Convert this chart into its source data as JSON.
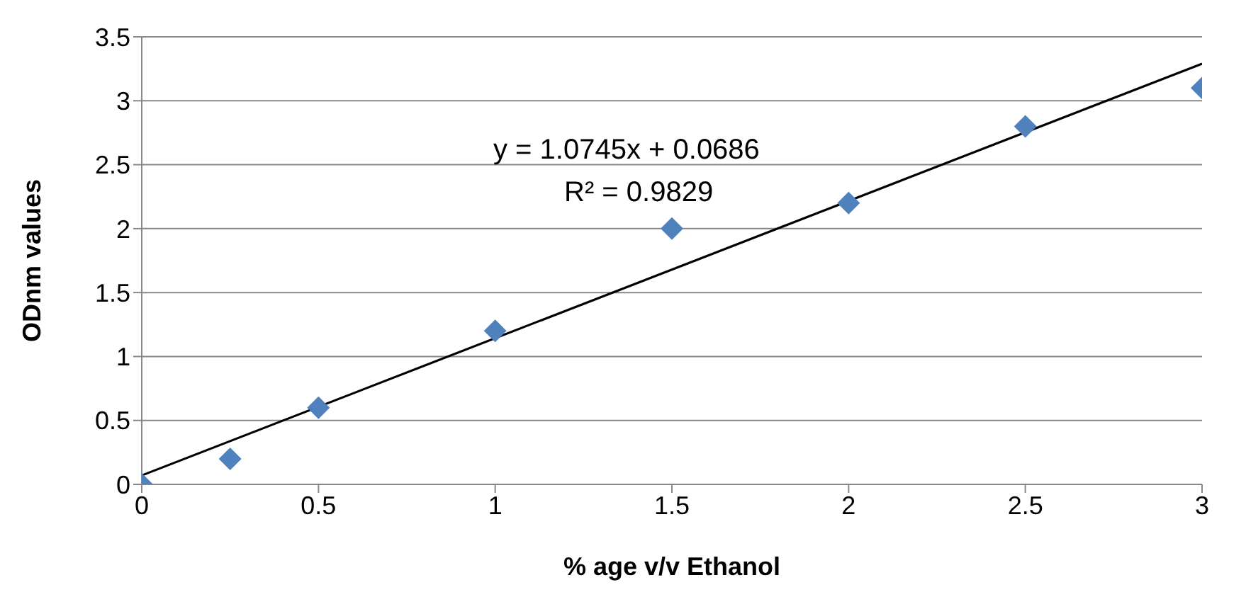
{
  "chart_data": {
    "type": "scatter",
    "xlabel": "% age v/v Ethanol",
    "ylabel": "ODnm  values",
    "annotations": [
      "y = 1.0745x + 0.0686",
      "R² = 0.9829"
    ],
    "series": [
      {
        "color": "#4f81bd",
        "marker": "diamond",
        "x": [
          0,
          0.25,
          0.5,
          1,
          1.5,
          2,
          2.5,
          3
        ],
        "values": [
          0,
          0.2,
          0.6,
          1.2,
          2,
          2.2,
          2.8,
          3.1
        ]
      },
      {
        "type": "line",
        "color": "#000000",
        "marker": "none",
        "line_style": "solid",
        "x": [
          0,
          3
        ],
        "values": [
          0.07,
          3.29
        ]
      }
    ],
    "xlim": [
      0,
      3
    ],
    "xticks": [
      0,
      0.5,
      1,
      1.5,
      2,
      2.5,
      3
    ],
    "ylim": [
      0,
      3.5
    ],
    "yticks": [
      0,
      0.5,
      1,
      1.5,
      2,
      2.5,
      3,
      3.5
    ],
    "grid": "y"
  }
}
